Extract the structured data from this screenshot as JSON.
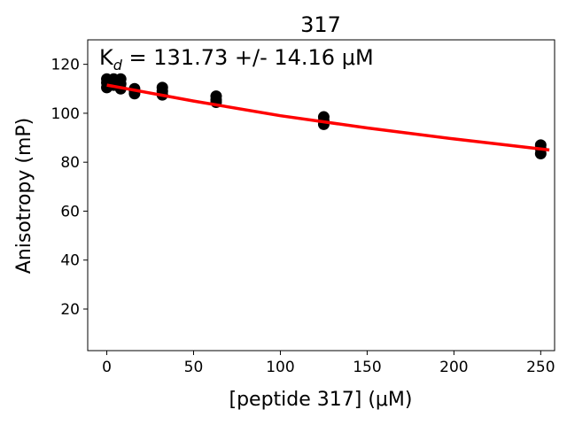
{
  "chart_data": {
    "type": "scatter",
    "title": "317",
    "xlabel": "[peptide 317] (μM)",
    "ylabel": "Anisotropy (mP)",
    "xlim": [
      -11,
      258
    ],
    "ylim": [
      3,
      130
    ],
    "xticks": [
      0,
      50,
      100,
      150,
      200,
      250
    ],
    "yticks": [
      20,
      40,
      60,
      80,
      100,
      120
    ],
    "grid": false,
    "annotation": {
      "kd_symbol": "K",
      "kd_subscript": "d",
      "text": " = 131.73 +/- 14.16 μM"
    },
    "scatter_color": "#000000",
    "fit_color": "#ff0000",
    "points": [
      {
        "x": 0,
        "y": 114.0
      },
      {
        "x": 0,
        "y": 112.5
      },
      {
        "x": 0,
        "y": 110.5
      },
      {
        "x": 1,
        "y": 113.0
      },
      {
        "x": 1,
        "y": 111.5
      },
      {
        "x": 2,
        "y": 113.5
      },
      {
        "x": 2,
        "y": 112.0
      },
      {
        "x": 4,
        "y": 114.0
      },
      {
        "x": 4,
        "y": 111.5
      },
      {
        "x": 8,
        "y": 114.0
      },
      {
        "x": 8,
        "y": 112.0
      },
      {
        "x": 8,
        "y": 110.0
      },
      {
        "x": 16,
        "y": 110.0
      },
      {
        "x": 16,
        "y": 109.0
      },
      {
        "x": 16,
        "y": 108.0
      },
      {
        "x": 32,
        "y": 110.5
      },
      {
        "x": 32,
        "y": 109.0
      },
      {
        "x": 32,
        "y": 107.5
      },
      {
        "x": 63,
        "y": 107.0
      },
      {
        "x": 63,
        "y": 105.5
      },
      {
        "x": 63,
        "y": 104.5
      },
      {
        "x": 125,
        "y": 98.5
      },
      {
        "x": 125,
        "y": 97.0
      },
      {
        "x": 125,
        "y": 95.5
      },
      {
        "x": 250,
        "y": 87.0
      },
      {
        "x": 250,
        "y": 85.5
      },
      {
        "x": 250,
        "y": 83.5
      }
    ],
    "fit_line": [
      {
        "x": 0,
        "y": 111.5
      },
      {
        "x": 50,
        "y": 105.0
      },
      {
        "x": 100,
        "y": 99.0
      },
      {
        "x": 150,
        "y": 94.0
      },
      {
        "x": 200,
        "y": 89.5
      },
      {
        "x": 255,
        "y": 85.0
      }
    ]
  }
}
